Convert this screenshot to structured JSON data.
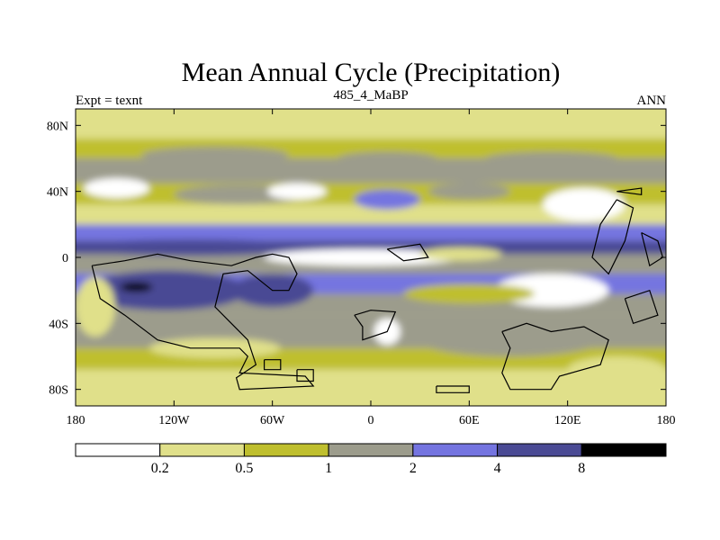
{
  "chart_data": {
    "type": "heatmap",
    "title": "Mean Annual Cycle (Precipitation)",
    "left_label": "Expt = texnt",
    "center_label": "485_4_MaBP",
    "right_label": "ANN",
    "x_ticks": [
      {
        "value": -180,
        "label": "180"
      },
      {
        "value": -120,
        "label": "120W"
      },
      {
        "value": -60,
        "label": "60W"
      },
      {
        "value": 0,
        "label": "0"
      },
      {
        "value": 60,
        "label": "60E"
      },
      {
        "value": 120,
        "label": "120E"
      },
      {
        "value": 180,
        "label": "180"
      }
    ],
    "y_ticks": [
      {
        "value": 80,
        "label": "80N"
      },
      {
        "value": 40,
        "label": "40N"
      },
      {
        "value": 0,
        "label": "0"
      },
      {
        "value": -40,
        "label": "40S"
      },
      {
        "value": -80,
        "label": "80S"
      }
    ],
    "xlim": [
      -180,
      180
    ],
    "ylim": [
      -90,
      90
    ],
    "colorbar": {
      "levels": [
        "0.2",
        "0.5",
        "1",
        "2",
        "4",
        "8"
      ],
      "colors": [
        "#ffffff",
        "#e0e08a",
        "#bfbf2e",
        "#9c9c8c",
        "#7474e0",
        "#4a4a94",
        "#000000"
      ]
    },
    "bands": [
      {
        "lat": [
          72,
          90
        ],
        "level": 1
      },
      {
        "lat": [
          60,
          72
        ],
        "level": 2
      },
      {
        "lat": [
          45,
          60
        ],
        "level": 3
      },
      {
        "lat": [
          32,
          45
        ],
        "level": 2
      },
      {
        "lat": [
          20,
          32
        ],
        "level": 1
      },
      {
        "lat": [
          10,
          20
        ],
        "level": 4
      },
      {
        "lat": [
          2,
          10
        ],
        "level": 5
      },
      {
        "lat": [
          -10,
          2
        ],
        "level": 3
      },
      {
        "lat": [
          -22,
          -10
        ],
        "level": 4
      },
      {
        "lat": [
          -35,
          -22
        ],
        "level": 3
      },
      {
        "lat": [
          -55,
          -35
        ],
        "level": 3
      },
      {
        "lat": [
          -68,
          -55
        ],
        "level": 2
      },
      {
        "lat": [
          -80,
          -68
        ],
        "level": 1
      },
      {
        "lat": [
          -90,
          -80
        ],
        "level": 1
      }
    ],
    "blobs": [
      {
        "lon": -95,
        "lat": 62,
        "rlon": 45,
        "rlat": 5,
        "level": 3
      },
      {
        "lon": 10,
        "lat": 60,
        "rlon": 30,
        "rlat": 4,
        "level": 3
      },
      {
        "lon": 110,
        "lat": 60,
        "rlon": 40,
        "rlat": 4,
        "level": 3
      },
      {
        "lon": -155,
        "lat": 42,
        "rlon": 20,
        "rlat": 6,
        "level": 0
      },
      {
        "lon": -80,
        "lat": 38,
        "rlon": 40,
        "rlat": 6,
        "level": 3
      },
      {
        "lon": -45,
        "lat": 40,
        "rlon": 18,
        "rlat": 5,
        "level": 0
      },
      {
        "lon": 10,
        "lat": 35,
        "rlon": 20,
        "rlat": 6,
        "level": 4
      },
      {
        "lon": 60,
        "lat": 40,
        "rlon": 25,
        "rlat": 5,
        "level": 3
      },
      {
        "lon": 130,
        "lat": 32,
        "rlon": 25,
        "rlat": 10,
        "level": 0
      },
      {
        "lon": -5,
        "lat": 0,
        "rlon": 60,
        "rlat": 5,
        "level": 0
      },
      {
        "lon": 55,
        "lat": 2,
        "rlon": 25,
        "rlat": 4,
        "level": 1
      },
      {
        "lon": -110,
        "lat": 6,
        "rlon": 70,
        "rlat": 5,
        "level": 5
      },
      {
        "lon": -125,
        "lat": -20,
        "rlon": 50,
        "rlat": 12,
        "level": 5
      },
      {
        "lon": -60,
        "lat": -20,
        "rlon": 25,
        "rlat": 10,
        "level": 5
      },
      {
        "lon": -143,
        "lat": -18,
        "rlon": 10,
        "rlat": 3,
        "level": 6
      },
      {
        "lon": 110,
        "lat": -20,
        "rlon": 35,
        "rlat": 10,
        "level": 0
      },
      {
        "lon": 60,
        "lat": -22,
        "rlon": 40,
        "rlat": 6,
        "level": 2
      },
      {
        "lon": 10,
        "lat": -45,
        "rlon": 8,
        "rlat": 8,
        "level": 0
      },
      {
        "lon": -168,
        "lat": -30,
        "rlon": 12,
        "rlat": 18,
        "level": 1
      },
      {
        "lon": -95,
        "lat": -55,
        "rlon": 40,
        "rlat": 6,
        "level": 1
      },
      {
        "lon": 85,
        "lat": -48,
        "rlon": 60,
        "rlat": 12,
        "level": 3
      },
      {
        "lon": 150,
        "lat": -68,
        "rlon": 30,
        "rlat": 8,
        "level": 1
      }
    ],
    "outlines": [
      [
        [
          -170,
          -5
        ],
        [
          -165,
          -25
        ],
        [
          -150,
          -35
        ],
        [
          -130,
          -50
        ],
        [
          -110,
          -55
        ],
        [
          -80,
          -55
        ],
        [
          -75,
          -60
        ],
        [
          -80,
          -70
        ],
        [
          -40,
          -72
        ],
        [
          -35,
          -78
        ],
        [
          -80,
          -80
        ],
        [
          -82,
          -73
        ],
        [
          -70,
          -65
        ],
        [
          -75,
          -50
        ],
        [
          -95,
          -30
        ],
        [
          -90,
          -10
        ],
        [
          -75,
          -8
        ],
        [
          -60,
          -20
        ],
        [
          -50,
          -20
        ],
        [
          -45,
          -10
        ],
        [
          -50,
          0
        ],
        [
          -60,
          2
        ],
        [
          -70,
          0
        ],
        [
          -85,
          -5
        ],
        [
          -110,
          -2
        ],
        [
          -130,
          2
        ],
        [
          -150,
          -2
        ],
        [
          -170,
          -5
        ]
      ],
      [
        [
          -10,
          -35
        ],
        [
          0,
          -32
        ],
        [
          15,
          -33
        ],
        [
          10,
          -45
        ],
        [
          -5,
          -50
        ],
        [
          -5,
          -42
        ],
        [
          -10,
          -35
        ]
      ],
      [
        [
          10,
          5
        ],
        [
          30,
          8
        ],
        [
          35,
          0
        ],
        [
          20,
          -2
        ],
        [
          10,
          5
        ]
      ],
      [
        [
          80,
          -45
        ],
        [
          95,
          -40
        ],
        [
          110,
          -45
        ],
        [
          130,
          -42
        ],
        [
          145,
          -50
        ],
        [
          140,
          -65
        ],
        [
          115,
          -72
        ],
        [
          110,
          -80
        ],
        [
          85,
          -80
        ],
        [
          80,
          -70
        ],
        [
          85,
          -55
        ],
        [
          80,
          -45
        ]
      ],
      [
        [
          150,
          35
        ],
        [
          140,
          20
        ],
        [
          135,
          0
        ],
        [
          145,
          -10
        ],
        [
          155,
          10
        ],
        [
          160,
          30
        ],
        [
          150,
          35
        ]
      ],
      [
        [
          155,
          -25
        ],
        [
          170,
          -20
        ],
        [
          175,
          -35
        ],
        [
          160,
          -40
        ],
        [
          155,
          -25
        ]
      ],
      [
        [
          -65,
          -62
        ],
        [
          -55,
          -62
        ],
        [
          -55,
          -68
        ],
        [
          -65,
          -68
        ],
        [
          -65,
          -62
        ]
      ],
      [
        [
          -45,
          -68
        ],
        [
          -35,
          -68
        ],
        [
          -35,
          -75
        ],
        [
          -45,
          -75
        ],
        [
          -45,
          -68
        ]
      ],
      [
        [
          40,
          -78
        ],
        [
          60,
          -78
        ],
        [
          60,
          -82
        ],
        [
          40,
          -82
        ],
        [
          40,
          -78
        ]
      ],
      [
        [
          150,
          40
        ],
        [
          165,
          42
        ],
        [
          165,
          38
        ],
        [
          150,
          40
        ]
      ],
      [
        [
          165,
          15
        ],
        [
          175,
          10
        ],
        [
          178,
          0
        ],
        [
          170,
          -5
        ],
        [
          165,
          15
        ]
      ]
    ]
  }
}
